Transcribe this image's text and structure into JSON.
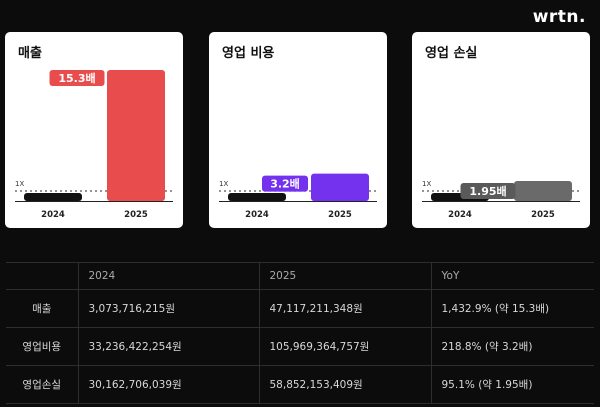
{
  "brand": "wrtn.",
  "colors": {
    "revenue": "#e84c4c",
    "opex": "#7431ee",
    "loss": "#6a6a6a",
    "base": "#111111"
  },
  "chart_data": [
    {
      "type": "bar",
      "title": "매출",
      "categories": [
        "2024",
        "2025"
      ],
      "values": [
        1,
        15.3
      ],
      "multiplier_label": "15.3배",
      "baseline_label": "1X"
    },
    {
      "type": "bar",
      "title": "영업 비용",
      "categories": [
        "2024",
        "2025"
      ],
      "values": [
        1,
        3.2
      ],
      "multiplier_label": "3.2배",
      "baseline_label": "1X"
    },
    {
      "type": "bar",
      "title": "영업 손실",
      "categories": [
        "2024",
        "2025"
      ],
      "values": [
        1,
        1.95
      ],
      "multiplier_label": "1.95배",
      "baseline_label": "1X"
    }
  ],
  "table": {
    "headers": [
      "",
      "2024",
      "2025",
      "YoY"
    ],
    "rows": [
      [
        "매출",
        "3,073,716,215원",
        "47,117,211,348원",
        "1,432.9% (약 15.3배)"
      ],
      [
        "영업비용",
        "33,236,422,254원",
        "105,969,364,757원",
        "218.8% (약 3.2배)"
      ],
      [
        "영업손실",
        "30,162,706,039원",
        "58,852,153,409원",
        "95.1% (약 1.95배)"
      ]
    ]
  }
}
